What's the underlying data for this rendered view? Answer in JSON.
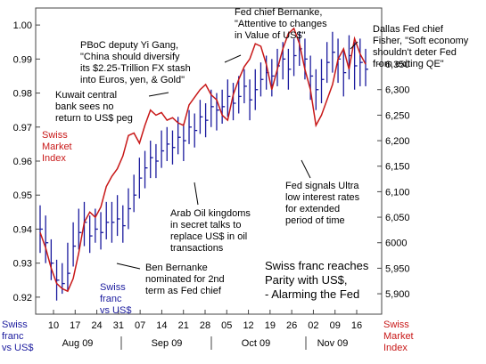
{
  "chart_data": {
    "type": "line",
    "x_tick_labels": [
      "10",
      "17",
      "24",
      "31",
      "07",
      "14",
      "21",
      "28",
      "05",
      "12",
      "19",
      "26",
      "02",
      "09",
      "16"
    ],
    "month_labels": [
      "Aug 09",
      "Sep 09",
      "Oct 09",
      "Nov 09"
    ],
    "left_axis": {
      "label": [
        "Swiss",
        "franc",
        "vs US$"
      ],
      "ylim": [
        0.915,
        1.005
      ],
      "ticks": [
        "0.92",
        "0.93",
        "0.94",
        "0.95",
        "0.96",
        "0.97",
        "0.98",
        "0.99",
        "1.00"
      ]
    },
    "right_axis": {
      "label": [
        "Swiss",
        "Market",
        "Index"
      ],
      "ylim": [
        5860,
        6460
      ],
      "ticks": [
        "5,900",
        "5,950",
        "6000",
        "6,050",
        "6,100",
        "6,150",
        "6,200",
        "6,250",
        "6,300",
        "6,350"
      ]
    },
    "series": [
      {
        "name": "Swiss franc vs US$",
        "style": "hlc-bars",
        "color": "#1b1b9e",
        "points": [
          {
            "c": 0.94,
            "h": 0.947,
            "l": 0.933
          },
          {
            "c": 0.936,
            "h": 0.944,
            "l": 0.93
          },
          {
            "c": 0.93,
            "h": 0.937,
            "l": 0.925
          },
          {
            "c": 0.925,
            "h": 0.931,
            "l": 0.919
          },
          {
            "c": 0.924,
            "h": 0.93,
            "l": 0.921
          },
          {
            "c": 0.927,
            "h": 0.936,
            "l": 0.922
          },
          {
            "c": 0.935,
            "h": 0.942,
            "l": 0.929
          },
          {
            "c": 0.939,
            "h": 0.946,
            "l": 0.934
          },
          {
            "c": 0.942,
            "h": 0.948,
            "l": 0.935
          },
          {
            "c": 0.938,
            "h": 0.944,
            "l": 0.933
          },
          {
            "c": 0.94,
            "h": 0.946,
            "l": 0.936
          },
          {
            "c": 0.939,
            "h": 0.945,
            "l": 0.934
          },
          {
            "c": 0.942,
            "h": 0.948,
            "l": 0.937
          },
          {
            "c": 0.942,
            "h": 0.948,
            "l": 0.936
          },
          {
            "c": 0.943,
            "h": 0.95,
            "l": 0.938
          },
          {
            "c": 0.941,
            "h": 0.947,
            "l": 0.936
          },
          {
            "c": 0.946,
            "h": 0.952,
            "l": 0.94
          },
          {
            "c": 0.95,
            "h": 0.956,
            "l": 0.945
          },
          {
            "c": 0.955,
            "h": 0.961,
            "l": 0.949
          },
          {
            "c": 0.958,
            "h": 0.963,
            "l": 0.952
          },
          {
            "c": 0.961,
            "h": 0.966,
            "l": 0.955
          },
          {
            "c": 0.96,
            "h": 0.965,
            "l": 0.955
          },
          {
            "c": 0.963,
            "h": 0.969,
            "l": 0.958
          },
          {
            "c": 0.965,
            "h": 0.97,
            "l": 0.96
          },
          {
            "c": 0.964,
            "h": 0.969,
            "l": 0.959
          },
          {
            "c": 0.967,
            "h": 0.973,
            "l": 0.962
          },
          {
            "c": 0.966,
            "h": 0.971,
            "l": 0.96
          },
          {
            "c": 0.97,
            "h": 0.975,
            "l": 0.965
          },
          {
            "c": 0.969,
            "h": 0.974,
            "l": 0.964
          },
          {
            "c": 0.973,
            "h": 0.978,
            "l": 0.968
          },
          {
            "c": 0.972,
            "h": 0.977,
            "l": 0.967
          },
          {
            "c": 0.976,
            "h": 0.981,
            "l": 0.97
          },
          {
            "c": 0.975,
            "h": 0.98,
            "l": 0.969
          },
          {
            "c": 0.976,
            "h": 0.981,
            "l": 0.971
          },
          {
            "c": 0.979,
            "h": 0.984,
            "l": 0.973
          },
          {
            "c": 0.977,
            "h": 0.983,
            "l": 0.972
          },
          {
            "c": 0.979,
            "h": 0.985,
            "l": 0.974
          },
          {
            "c": 0.982,
            "h": 0.987,
            "l": 0.977
          },
          {
            "c": 0.978,
            "h": 0.984,
            "l": 0.972
          },
          {
            "c": 0.981,
            "h": 0.987,
            "l": 0.975
          },
          {
            "c": 0.984,
            "h": 0.989,
            "l": 0.979
          },
          {
            "c": 0.986,
            "h": 0.991,
            "l": 0.981
          },
          {
            "c": 0.985,
            "h": 0.99,
            "l": 0.979
          },
          {
            "c": 0.988,
            "h": 0.993,
            "l": 0.982
          },
          {
            "c": 0.99,
            "h": 0.995,
            "l": 0.984
          },
          {
            "c": 0.987,
            "h": 0.993,
            "l": 0.981
          },
          {
            "c": 0.991,
            "h": 0.996,
            "l": 0.985
          },
          {
            "c": 0.993,
            "h": 0.998,
            "l": 0.988
          },
          {
            "c": 0.99,
            "h": 0.996,
            "l": 0.984
          },
          {
            "c": 0.985,
            "h": 0.991,
            "l": 0.978
          },
          {
            "c": 0.981,
            "h": 0.987,
            "l": 0.975
          },
          {
            "c": 0.984,
            "h": 0.99,
            "l": 0.977
          },
          {
            "c": 0.989,
            "h": 0.995,
            "l": 0.983
          },
          {
            "c": 0.992,
            "h": 0.998,
            "l": 0.986
          },
          {
            "c": 0.99,
            "h": 0.996,
            "l": 0.983
          },
          {
            "c": 0.986,
            "h": 0.993,
            "l": 0.979
          },
          {
            "c": 0.991,
            "h": 0.997,
            "l": 0.984
          },
          {
            "c": 0.988,
            "h": 0.995,
            "l": 0.981
          },
          {
            "c": 0.989,
            "h": 0.996,
            "l": 0.982
          },
          {
            "c": 0.987,
            "h": 0.993,
            "l": 0.982
          }
        ]
      },
      {
        "name": "Swiss Market Index",
        "style": "line",
        "color": "#c81818",
        "axis": "right",
        "values": [
          6020,
          5990,
          5950,
          5920,
          5910,
          5905,
          5930,
          5980,
          6040,
          6060,
          6050,
          6070,
          6110,
          6130,
          6145,
          6170,
          6210,
          6215,
          6195,
          6230,
          6260,
          6250,
          6255,
          6240,
          6245,
          6235,
          6230,
          6270,
          6285,
          6300,
          6310,
          6290,
          6280,
          6250,
          6240,
          6290,
          6320,
          6345,
          6360,
          6390,
          6385,
          6350,
          6300,
          6340,
          6380,
          6410,
          6420,
          6390,
          6340,
          6300,
          6230,
          6250,
          6280,
          6310,
          6360,
          6380,
          6340,
          6400,
          6370,
          6350
        ]
      }
    ],
    "annotations": [
      {
        "id": "kuwait",
        "lines": [
          "Kuwait central",
          "bank sees no",
          "return to US$ peg"
        ]
      },
      {
        "id": "pboc",
        "lines": [
          "PBoC deputy Yi Gang,",
          "\"China should diversify",
          "its $2.25-Trillion FX stash",
          "into Euros, yen, & Gold\""
        ]
      },
      {
        "id": "bernanke_top",
        "lines": [
          "Fed chief Bernanke,",
          "\"Attentive to changes",
          "in Value of US$\""
        ]
      },
      {
        "id": "dallas",
        "lines": [
          "Dallas Fed chief",
          "Fisher, \"Soft economy",
          "shouldn't deter Fed",
          "from exiting QE\""
        ]
      },
      {
        "id": "arab",
        "lines": [
          "Arab Oil kingdoms",
          "in secret talks to",
          "replace US$ in oil",
          "transactions"
        ]
      },
      {
        "id": "ultra",
        "lines": [
          "Fed signals Ultra",
          "low interest rates",
          "for extended",
          "period of time"
        ]
      },
      {
        "id": "nominated",
        "lines": [
          "Ben Bernanke",
          "nominated for 2nd",
          "term as Fed chief"
        ]
      },
      {
        "id": "parity",
        "lines": [
          "Swiss franc reaches",
          "Parity with US$,",
          "- Alarming the Fed"
        ]
      }
    ],
    "series_labels": {
      "smi_inline": [
        "Swiss",
        "Market",
        "Index"
      ],
      "franc_inline": [
        "Swiss",
        "franc",
        "vs US$"
      ]
    }
  }
}
